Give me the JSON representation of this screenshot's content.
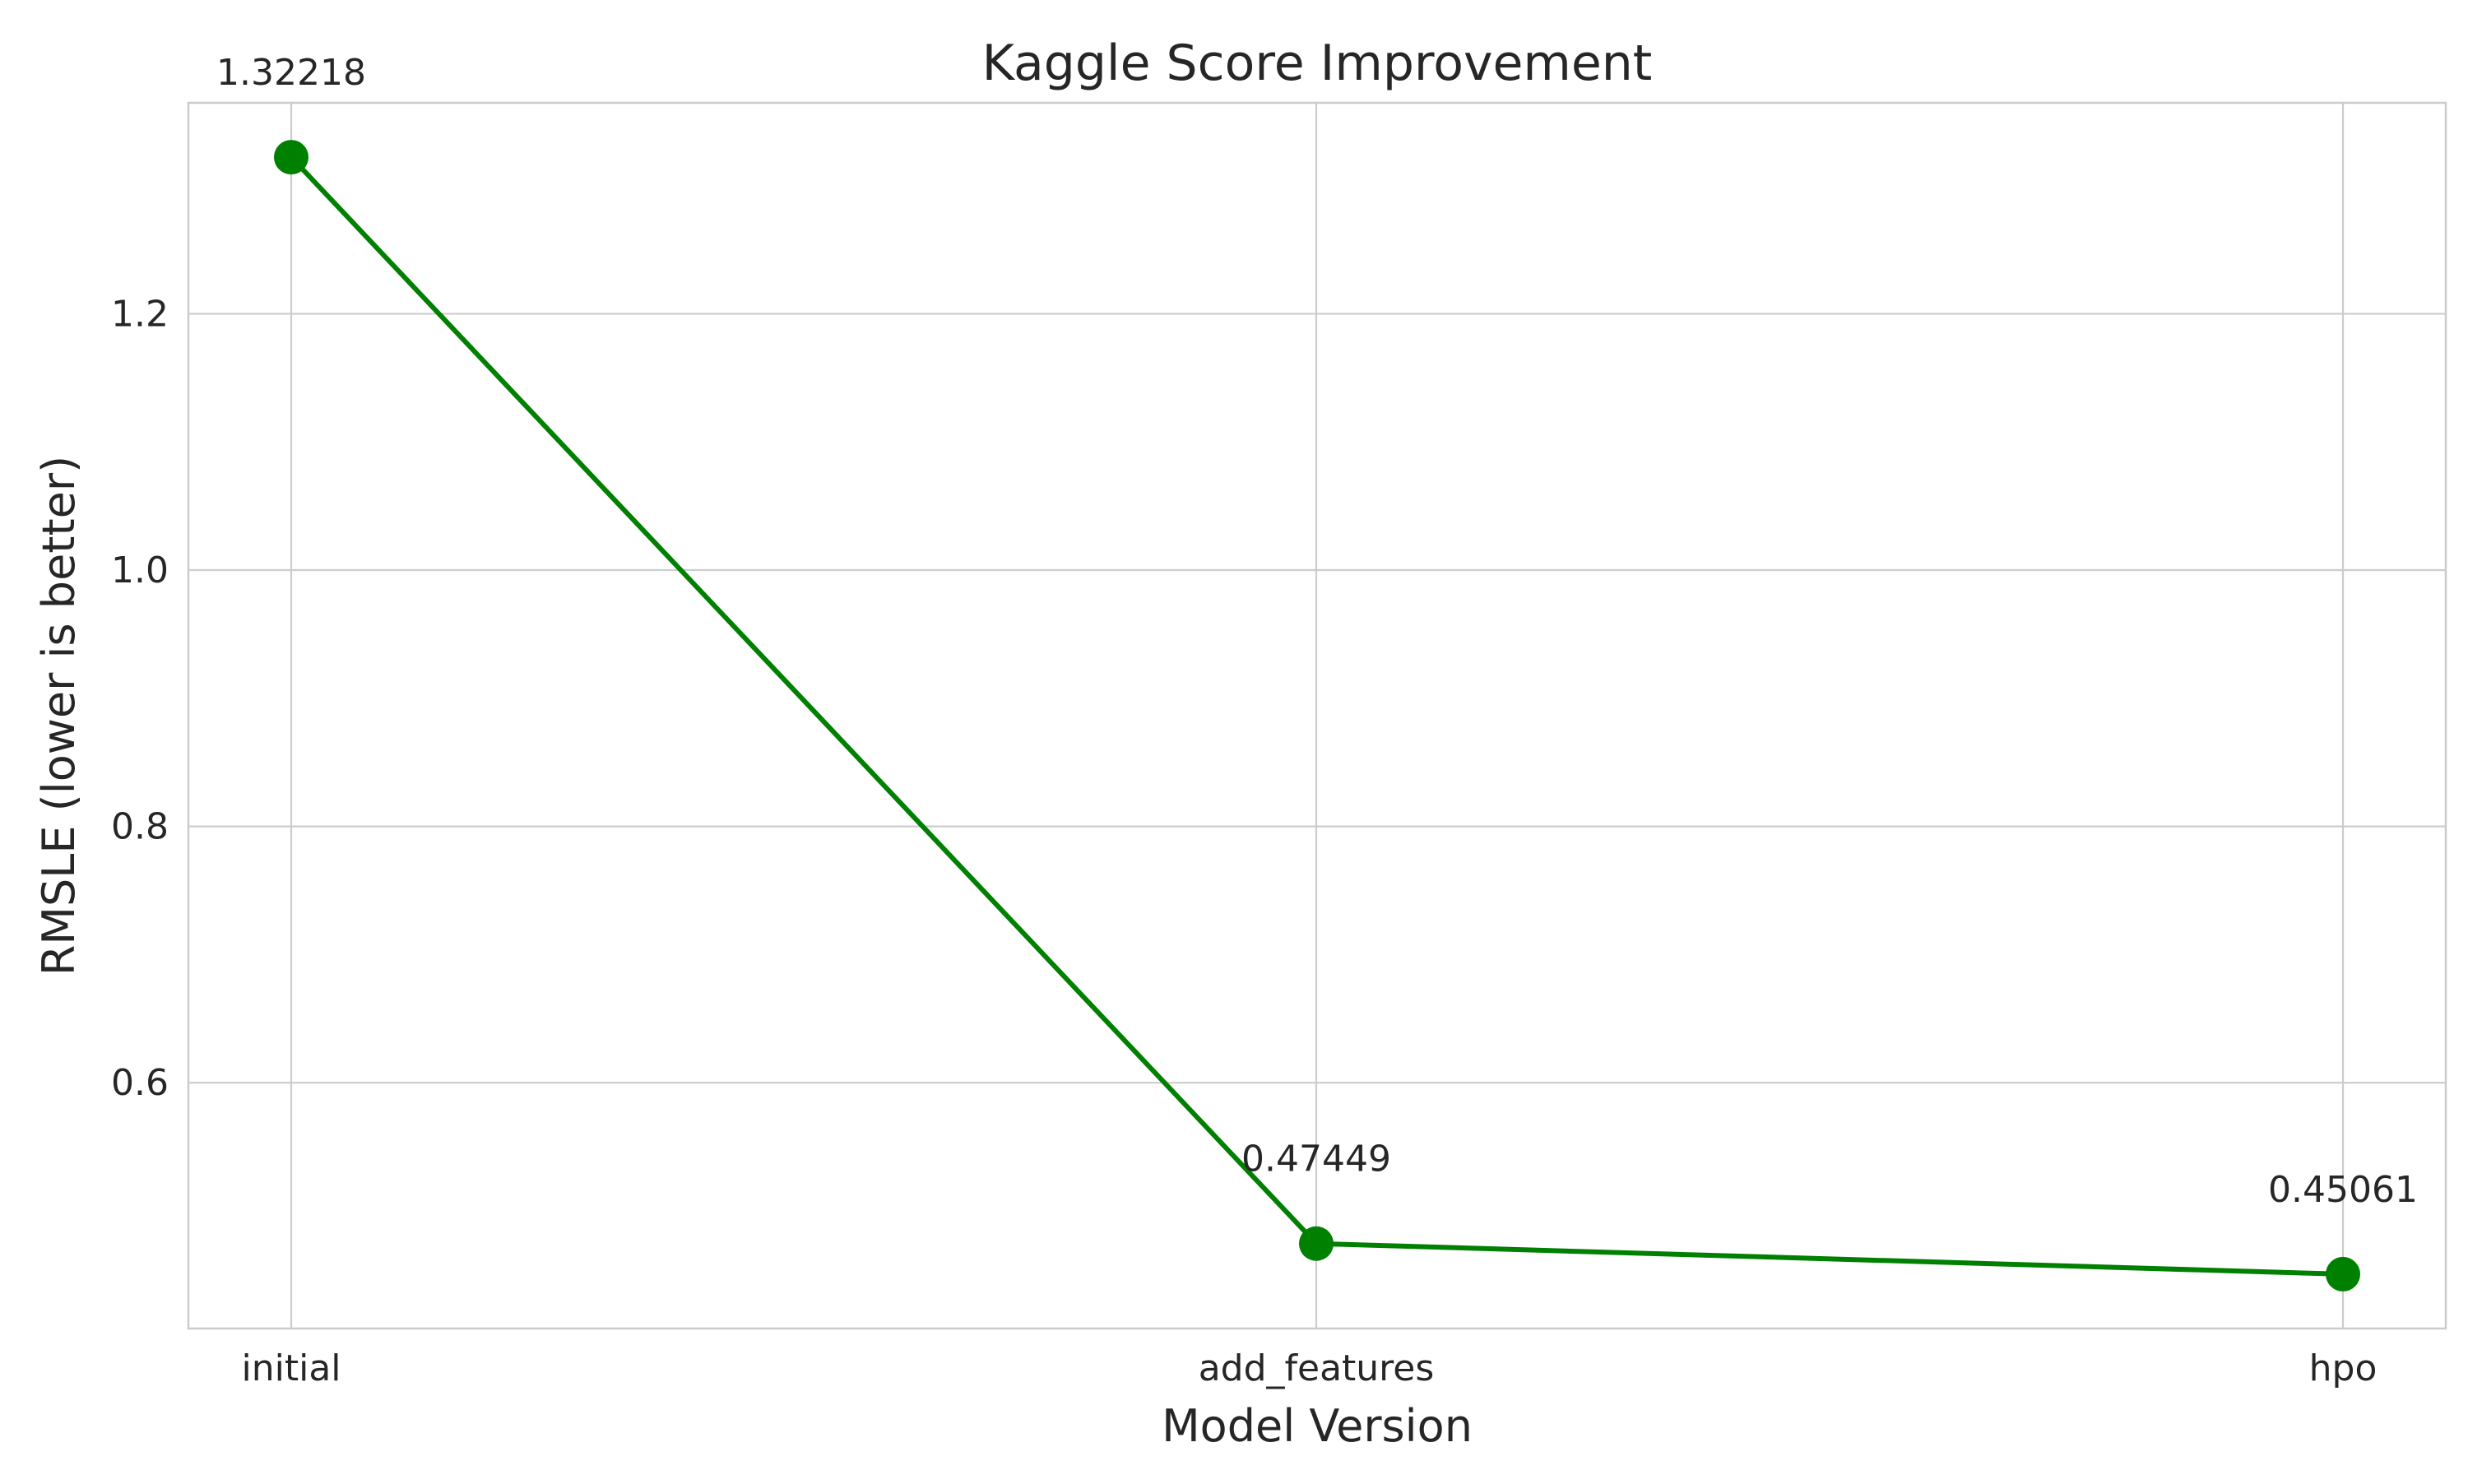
{
  "chart_data": {
    "type": "line",
    "title": "Kaggle Score Improvement",
    "xlabel": "Model Version",
    "ylabel": "RMSLE (lower is better)",
    "categories": [
      "initial",
      "add_features",
      "hpo"
    ],
    "series": [
      {
        "values": [
          1.32218,
          0.47449,
          0.45061
        ],
        "color": "#008000",
        "marker": "circle"
      }
    ],
    "data_labels": [
      "1.32218",
      "0.47449",
      "0.45061"
    ],
    "yticks": [
      0.6,
      0.8,
      1.0,
      1.2
    ],
    "ytick_labels": [
      "0.6",
      "0.8",
      "1.0",
      "1.2"
    ],
    "ylim": [
      0.4082,
      1.3646
    ],
    "grid": true,
    "legend": "none"
  }
}
